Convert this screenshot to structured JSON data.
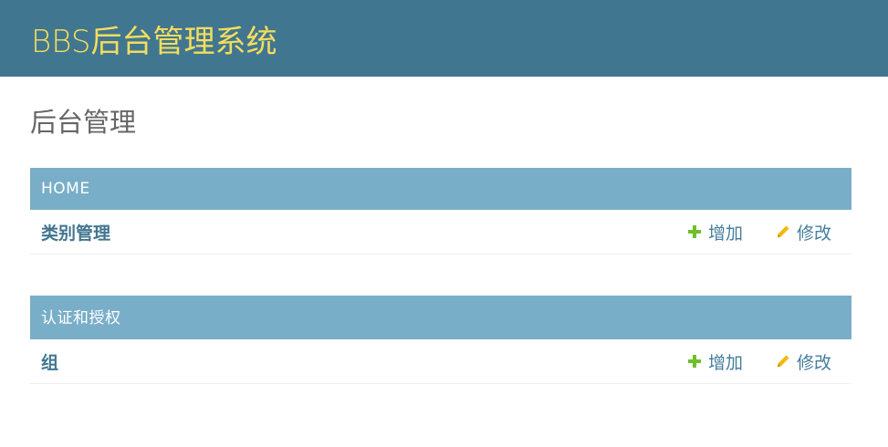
{
  "header": {
    "site_title": "BBS后台管理系统"
  },
  "page": {
    "title": "后台管理"
  },
  "modules": [
    {
      "caption": "HOME",
      "models": [
        {
          "name": "类别管理",
          "add_label": "增加",
          "change_label": "修改"
        }
      ]
    },
    {
      "caption": "认证和授权",
      "models": [
        {
          "name": "组",
          "add_label": "增加",
          "change_label": "修改"
        }
      ]
    }
  ],
  "colors": {
    "header_bg": "#417690",
    "site_title": "#f5dd5d",
    "caption_bg": "#79aec8",
    "link": "#417690",
    "add_icon": "#70bf2b",
    "change_icon": "#efb80b"
  },
  "icons": {
    "add": "plus-icon",
    "change": "pencil-icon"
  }
}
